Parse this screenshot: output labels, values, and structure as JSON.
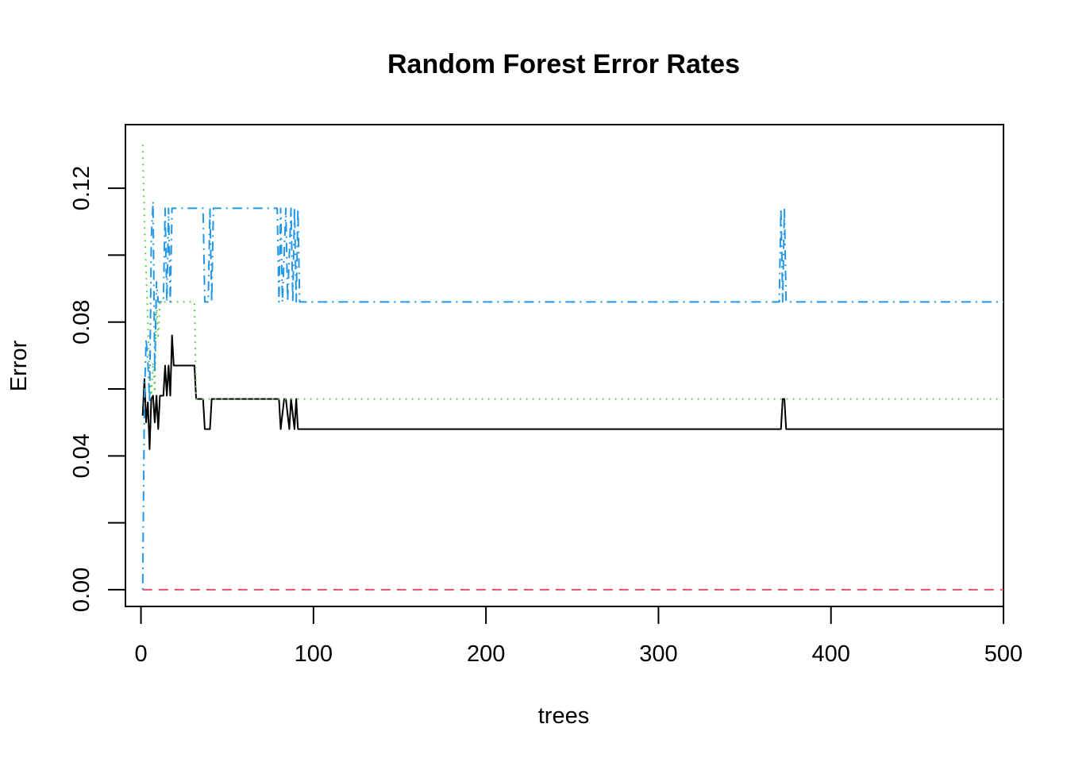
{
  "chart_data": {
    "type": "line",
    "title": "Random Forest Error Rates",
    "xlabel": "trees",
    "ylabel": "Error",
    "xlim": [
      -9,
      500
    ],
    "ylim": [
      -0.005,
      0.139
    ],
    "x_ticks": [
      0,
      100,
      200,
      300,
      400,
      500
    ],
    "x_tick_labels": [
      "0",
      "100",
      "200",
      "300",
      "400",
      "500"
    ],
    "y_ticks": [
      0.0,
      0.02,
      0.04,
      0.06,
      0.08,
      0.1,
      0.12
    ],
    "y_tick_labels": [
      "0.00",
      "",
      "0.04",
      "",
      "0.08",
      "",
      "0.12"
    ],
    "grid": false,
    "legend": "none",
    "series": [
      {
        "color": "#000000",
        "dash": "solid",
        "x": [
          1,
          2,
          3,
          4,
          5,
          6,
          7,
          8,
          9,
          10,
          11,
          12,
          13,
          14,
          15,
          16,
          17,
          18,
          19,
          20,
          31,
          32,
          36,
          37,
          40,
          41,
          80,
          81,
          83,
          84,
          86,
          87,
          89,
          90,
          91,
          92,
          371,
          372,
          373,
          374,
          500
        ],
        "y": [
          0.052,
          0.063,
          0.05,
          0.056,
          0.042,
          0.057,
          0.058,
          0.05,
          0.058,
          0.048,
          0.058,
          0.058,
          0.058,
          0.067,
          0.058,
          0.067,
          0.058,
          0.076,
          0.067,
          0.067,
          0.067,
          0.057,
          0.057,
          0.048,
          0.048,
          0.057,
          0.057,
          0.048,
          0.057,
          0.057,
          0.048,
          0.057,
          0.048,
          0.057,
          0.048,
          0.048,
          0.048,
          0.057,
          0.057,
          0.048,
          0.048
        ]
      },
      {
        "color": "#df536b",
        "dash": "dashed",
        "x": [
          1,
          500
        ],
        "y": [
          0.0,
          0.0
        ]
      },
      {
        "color": "#61d04f",
        "dash": "dotted",
        "x": [
          1,
          2,
          3,
          4,
          5,
          6,
          7,
          8,
          9,
          10,
          11,
          12,
          13,
          31,
          32,
          33,
          500
        ],
        "y": [
          0.133,
          0.11,
          0.095,
          0.08,
          0.063,
          0.058,
          0.068,
          0.059,
          0.085,
          0.075,
          0.086,
          0.086,
          0.086,
          0.086,
          0.057,
          0.057,
          0.057
        ]
      },
      {
        "color": "#2297e6",
        "dash": "dotdash",
        "x": [
          1,
          2,
          3,
          4,
          5,
          6,
          7,
          8,
          9,
          10,
          13,
          14,
          15,
          16,
          17,
          18,
          36,
          37,
          39,
          40,
          41,
          42,
          79,
          80,
          81,
          82,
          84,
          85,
          87,
          88,
          89,
          90,
          91,
          92,
          370,
          371,
          372,
          373,
          374,
          375,
          500
        ],
        "y": [
          0.0,
          0.057,
          0.075,
          0.068,
          0.056,
          0.105,
          0.116,
          0.065,
          0.092,
          0.086,
          0.086,
          0.114,
          0.086,
          0.114,
          0.086,
          0.114,
          0.114,
          0.086,
          0.086,
          0.114,
          0.086,
          0.114,
          0.114,
          0.086,
          0.114,
          0.086,
          0.114,
          0.086,
          0.114,
          0.086,
          0.114,
          0.086,
          0.114,
          0.086,
          0.086,
          0.114,
          0.086,
          0.114,
          0.086,
          0.086,
          0.086
        ]
      }
    ]
  }
}
